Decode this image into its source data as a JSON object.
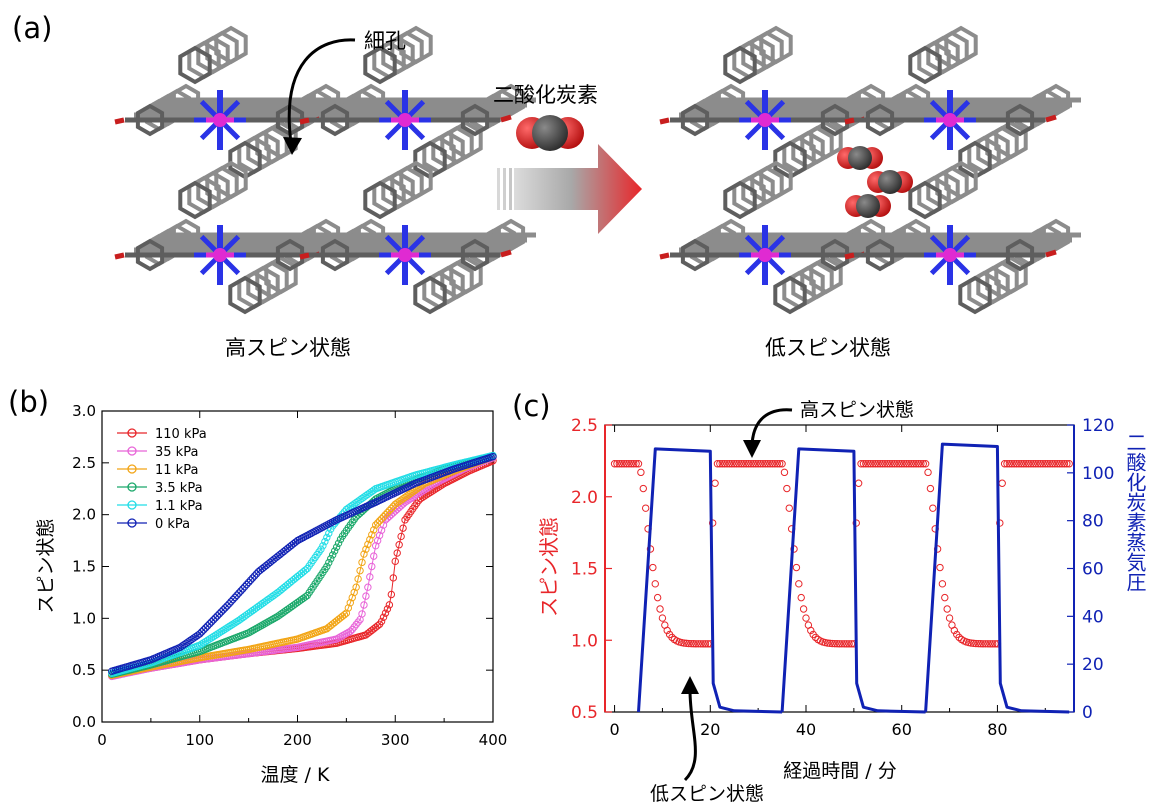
{
  "panel_a": {
    "label": "(a)",
    "pore_label": "細孔",
    "arrow_label": "二酸化炭素",
    "left_caption": "高スピン状態",
    "right_caption": "低スピン状態"
  },
  "colors": {
    "red": "#e8262a",
    "blue": "#1022b4",
    "frame_gray": "#8c8c8c",
    "nitrogen_blue": "#2a33e6",
    "iron_magenta": "#e02ad2",
    "oxygen_red": "#c81e1e"
  },
  "chart_data": [
    {
      "panel": "(b)",
      "type": "scatter",
      "title": "",
      "xlabel": "温度 / K",
      "ylabel": "スピン状態",
      "xlim": [
        0,
        400
      ],
      "ylim": [
        0.0,
        3.0
      ],
      "xticks": [
        "0",
        "100",
        "200",
        "300",
        "400"
      ],
      "yticks": [
        "0.0",
        "0.5",
        "1.0",
        "1.5",
        "2.0",
        "2.5",
        "3.0"
      ],
      "grid": false,
      "legend_position": "top-left",
      "series": [
        {
          "name": "110 kPa",
          "color": "#e8262a",
          "x": [
            10,
            50,
            100,
            150,
            200,
            240,
            270,
            285,
            295,
            300,
            310,
            325,
            350,
            375,
            400
          ],
          "y": [
            0.45,
            0.52,
            0.6,
            0.66,
            0.71,
            0.76,
            0.84,
            0.95,
            1.15,
            1.55,
            1.95,
            2.15,
            2.3,
            2.42,
            2.52
          ]
        },
        {
          "name": "35 kPa",
          "color": "#e864d8",
          "x": [
            10,
            50,
            100,
            150,
            200,
            240,
            255,
            265,
            272,
            280,
            290,
            310,
            340,
            370,
            400
          ],
          "y": [
            0.44,
            0.52,
            0.6,
            0.66,
            0.72,
            0.8,
            0.88,
            1.0,
            1.3,
            1.7,
            1.95,
            2.12,
            2.3,
            2.44,
            2.55
          ]
        },
        {
          "name": "11 kPa",
          "color": "#f2a516",
          "x": [
            10,
            50,
            100,
            150,
            200,
            230,
            250,
            260,
            268,
            280,
            300,
            330,
            360,
            400
          ],
          "y": [
            0.45,
            0.53,
            0.62,
            0.7,
            0.8,
            0.9,
            1.05,
            1.3,
            1.62,
            1.9,
            2.1,
            2.3,
            2.42,
            2.56
          ]
        },
        {
          "name": "3.5 kPa",
          "color": "#1aa86a",
          "x": [
            10,
            50,
            100,
            150,
            180,
            210,
            230,
            245,
            260,
            280,
            310,
            350,
            400
          ],
          "y": [
            0.46,
            0.55,
            0.68,
            0.86,
            1.02,
            1.22,
            1.5,
            1.78,
            1.98,
            2.15,
            2.3,
            2.44,
            2.57
          ]
        },
        {
          "name": "1.1 kPa",
          "color": "#22dde6",
          "x": [
            10,
            50,
            100,
            140,
            180,
            210,
            225,
            235,
            250,
            280,
            320,
            360,
            400
          ],
          "y": [
            0.47,
            0.57,
            0.74,
            0.98,
            1.25,
            1.48,
            1.68,
            1.88,
            2.05,
            2.25,
            2.38,
            2.48,
            2.57
          ]
        },
        {
          "name": "0 kPa",
          "color": "#1022b4",
          "x": [
            10,
            50,
            80,
            100,
            130,
            160,
            200,
            240,
            280,
            320,
            360,
            400
          ],
          "y": [
            0.49,
            0.6,
            0.72,
            0.85,
            1.14,
            1.45,
            1.75,
            1.95,
            2.12,
            2.3,
            2.44,
            2.56
          ]
        }
      ]
    },
    {
      "panel": "(c)",
      "type": "line",
      "title": "",
      "xlabel": "経過時間 / 分",
      "ylabel": "スピン状態",
      "ylabel_right": "二酸化炭素蒸気圧",
      "xlim": [
        -2,
        96
      ],
      "ylim": [
        0.5,
        2.5
      ],
      "ylim_right": [
        0,
        120
      ],
      "xticks": [
        "0",
        "20",
        "40",
        "60",
        "80"
      ],
      "yticks": [
        "0.5",
        "1.0",
        "1.5",
        "2.0",
        "2.5"
      ],
      "yticks_right": [
        "0",
        "20",
        "40",
        "60",
        "80",
        "100",
        "120"
      ],
      "grid": false,
      "annotation_top": "高スピン状態",
      "annotation_bottom": "低スピン状態",
      "spin_series": {
        "name": "スピン状態",
        "color": "#e8262a",
        "axis": "left",
        "high": 2.23,
        "low": 0.975,
        "cycles": [
          [
            0,
            5,
            20
          ],
          [
            20,
            35,
            50
          ],
          [
            50,
            65,
            80
          ]
        ],
        "t_end": 95
      },
      "pressure_series": {
        "name": "二酸化炭素蒸気圧",
        "color": "#1022b4",
        "axis": "right",
        "segments": [
          {
            "x": [
              5,
              8.5,
              20,
              20.6,
              22,
              25,
              35
            ],
            "y": [
              0,
              110,
              109,
              12,
              2,
              0.5,
              0
            ]
          },
          {
            "x": [
              35,
              38.5,
              50,
              50.6,
              52,
              55,
              65
            ],
            "y": [
              0,
              110,
              109,
              12,
              2,
              0.5,
              0
            ]
          },
          {
            "x": [
              65,
              68.5,
              80,
              80.6,
              82,
              85,
              95
            ],
            "y": [
              0,
              112,
              111,
              12,
              2,
              0.5,
              0
            ]
          }
        ]
      }
    }
  ]
}
